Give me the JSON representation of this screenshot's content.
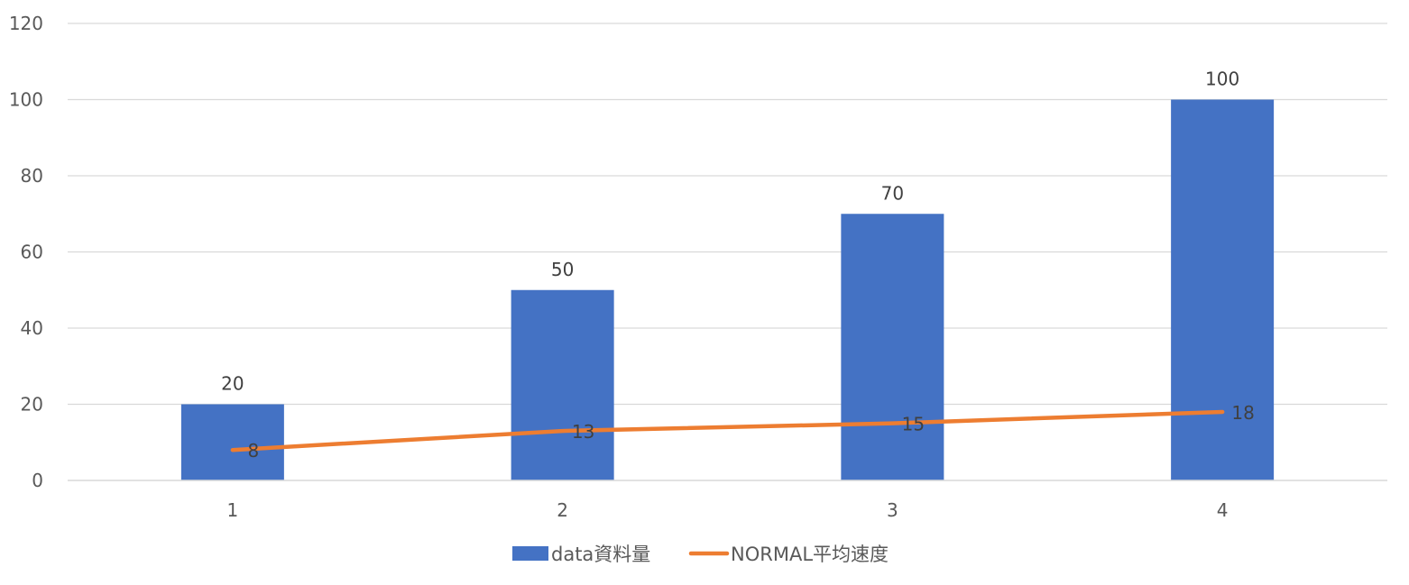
{
  "chart_data": {
    "type": "bar",
    "categories": [
      "1",
      "2",
      "3",
      "4"
    ],
    "series": [
      {
        "name": "data資料量",
        "type": "bar",
        "values": [
          20,
          50,
          70,
          100
        ],
        "color": "#4472C4",
        "data_labels": [
          "20",
          "50",
          "70",
          "100"
        ]
      },
      {
        "name": "NORMAL平均速度",
        "type": "line",
        "values": [
          8,
          13,
          15,
          18
        ],
        "color": "#ED7D31",
        "data_labels": [
          "8",
          "13",
          "15",
          "18"
        ]
      }
    ],
    "title": "",
    "xlabel": "",
    "ylabel": "",
    "ylim": [
      0,
      120
    ],
    "yticks": [
      "0",
      "20",
      "40",
      "60",
      "80",
      "100",
      "120"
    ],
    "grid": true,
    "legend_position": "bottom",
    "gridline_color": "#D9D9D9"
  }
}
